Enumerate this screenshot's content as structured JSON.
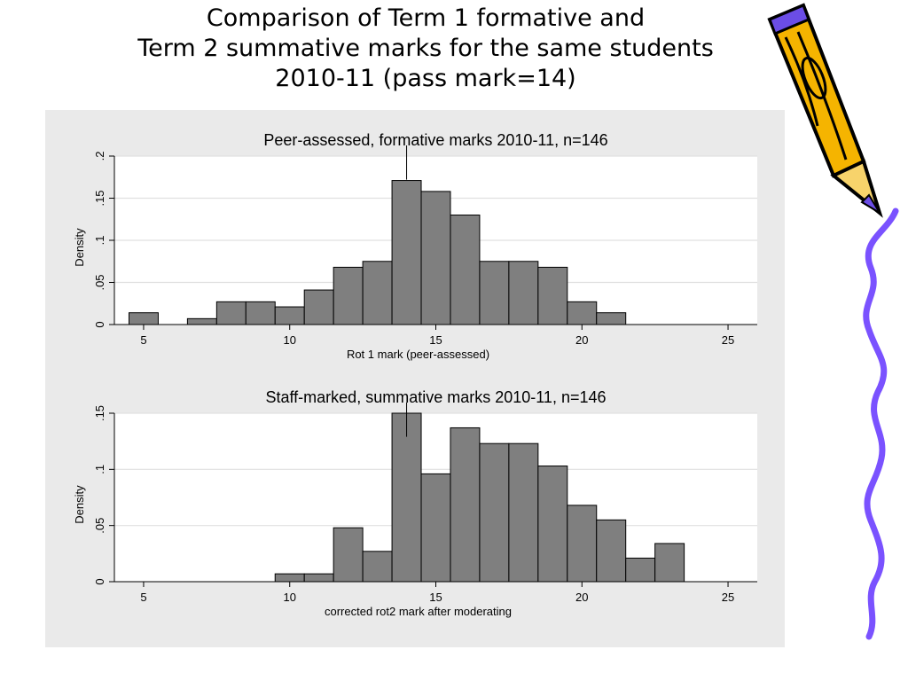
{
  "slide": {
    "title_lines": [
      "Comparison of Term 1 formative and",
      "Term 2 summative marks for the same students",
      "2010-11 (pass mark=14)"
    ]
  },
  "colors": {
    "bar_fill": "#7f7f7f",
    "bar_stroke": "#000000",
    "plot_bg": "#ffffff",
    "panel_bg": "#eaeaea",
    "grid": "#e0e0e0",
    "pencil_body": "#f5b400",
    "squiggle": "#7a52ff"
  },
  "decorations": [
    "pencil-icon",
    "squiggle-line"
  ],
  "chart_data": [
    {
      "type": "bar",
      "title": "Peer-assessed, formative marks 2010-11, n=146",
      "xlabel": "Rot 1 mark (peer-assessed)",
      "ylabel": "Density",
      "xlim": [
        4,
        26
      ],
      "ylim": [
        0,
        0.2
      ],
      "xticks": [
        5,
        10,
        15,
        20,
        25
      ],
      "yticks": [
        0,
        0.05,
        0.1,
        0.15,
        0.2
      ],
      "ytick_labels": [
        "0",
        ".05",
        ".1",
        ".15",
        ".2"
      ],
      "reference_line_x": 14,
      "bin_width": 1,
      "grid": true,
      "bins": [
        {
          "x": 5,
          "density": 0.014
        },
        {
          "x": 7,
          "density": 0.007
        },
        {
          "x": 8,
          "density": 0.027
        },
        {
          "x": 9,
          "density": 0.027
        },
        {
          "x": 10,
          "density": 0.021
        },
        {
          "x": 11,
          "density": 0.041
        },
        {
          "x": 12,
          "density": 0.068
        },
        {
          "x": 13,
          "density": 0.075
        },
        {
          "x": 14,
          "density": 0.171
        },
        {
          "x": 15,
          "density": 0.158
        },
        {
          "x": 16,
          "density": 0.13
        },
        {
          "x": 17,
          "density": 0.075
        },
        {
          "x": 18,
          "density": 0.075
        },
        {
          "x": 19,
          "density": 0.068
        },
        {
          "x": 20,
          "density": 0.027
        },
        {
          "x": 21,
          "density": 0.014
        }
      ]
    },
    {
      "type": "bar",
      "title": "Staff-marked, summative marks 2010-11, n=146",
      "xlabel": "corrected rot2 mark after moderating",
      "ylabel": "Density",
      "xlim": [
        4,
        26
      ],
      "ylim": [
        0,
        0.15
      ],
      "xticks": [
        5,
        10,
        15,
        20,
        25
      ],
      "yticks": [
        0,
        0.05,
        0.1,
        0.15
      ],
      "ytick_labels": [
        "0",
        ".05",
        ".1",
        ".15"
      ],
      "reference_line_x": 14,
      "bin_width": 1,
      "grid": true,
      "bins": [
        {
          "x": 10,
          "density": 0.007
        },
        {
          "x": 11,
          "density": 0.007
        },
        {
          "x": 12,
          "density": 0.048
        },
        {
          "x": 13,
          "density": 0.027
        },
        {
          "x": 14,
          "density": 0.15
        },
        {
          "x": 15,
          "density": 0.096
        },
        {
          "x": 16,
          "density": 0.137
        },
        {
          "x": 17,
          "density": 0.123
        },
        {
          "x": 18,
          "density": 0.123
        },
        {
          "x": 19,
          "density": 0.103
        },
        {
          "x": 20,
          "density": 0.068
        },
        {
          "x": 21,
          "density": 0.055
        },
        {
          "x": 22,
          "density": 0.021
        },
        {
          "x": 23,
          "density": 0.034
        }
      ]
    }
  ]
}
